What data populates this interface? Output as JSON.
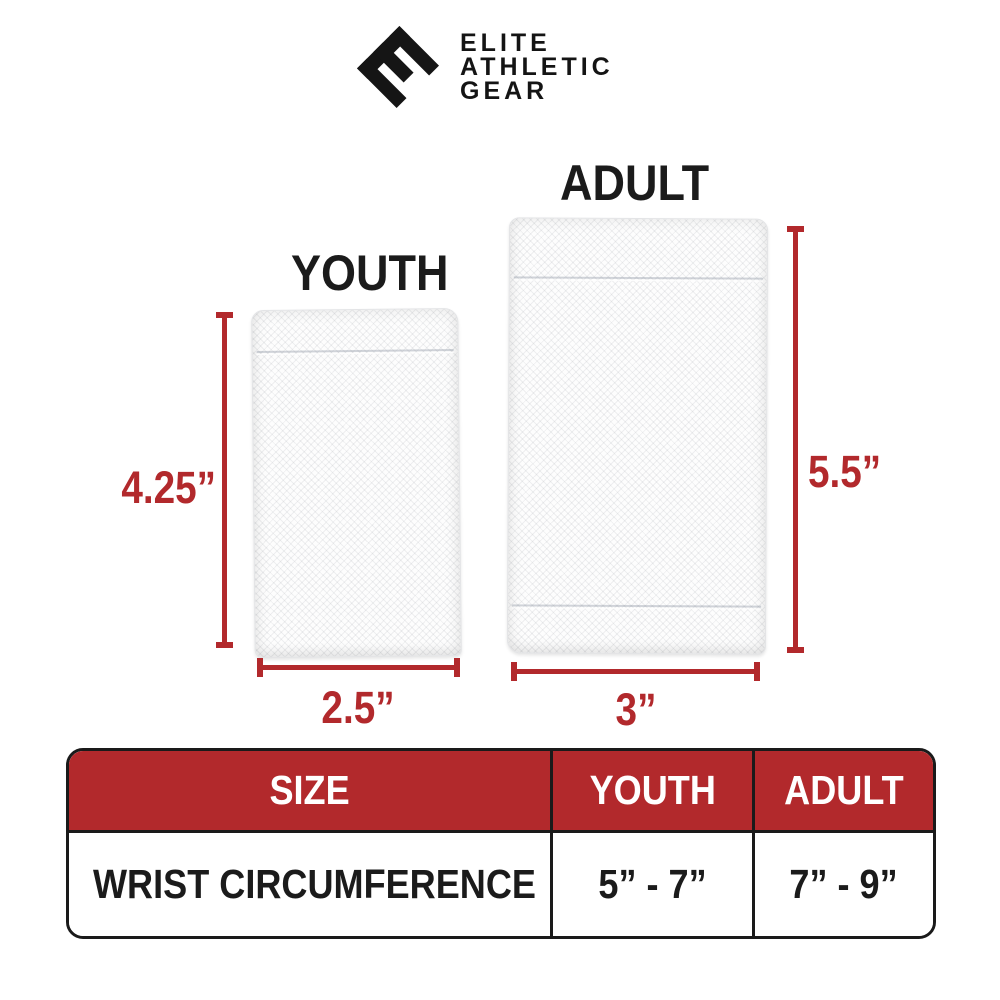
{
  "brand": {
    "logo_letter": "E",
    "line1": "ELITE",
    "line2": "ATHLETIC",
    "line3": "GEAR"
  },
  "diagram": {
    "youth": {
      "label": "YOUTH",
      "height": "4.25”",
      "width": "2.5”"
    },
    "adult": {
      "label": "ADULT",
      "height": "5.5”",
      "width": "3”"
    }
  },
  "table": {
    "headers": {
      "size": "SIZE",
      "youth": "YOUTH",
      "adult": "ADULT"
    },
    "row": {
      "label": "WRIST CIRCUMFERENCE",
      "youth": "5” - 7”",
      "adult": "7” - 9”"
    }
  },
  "colors": {
    "accent_red": "#B2292C",
    "ink_black": "#1A1A1A",
    "fabric_white": "#FDFDFD"
  }
}
